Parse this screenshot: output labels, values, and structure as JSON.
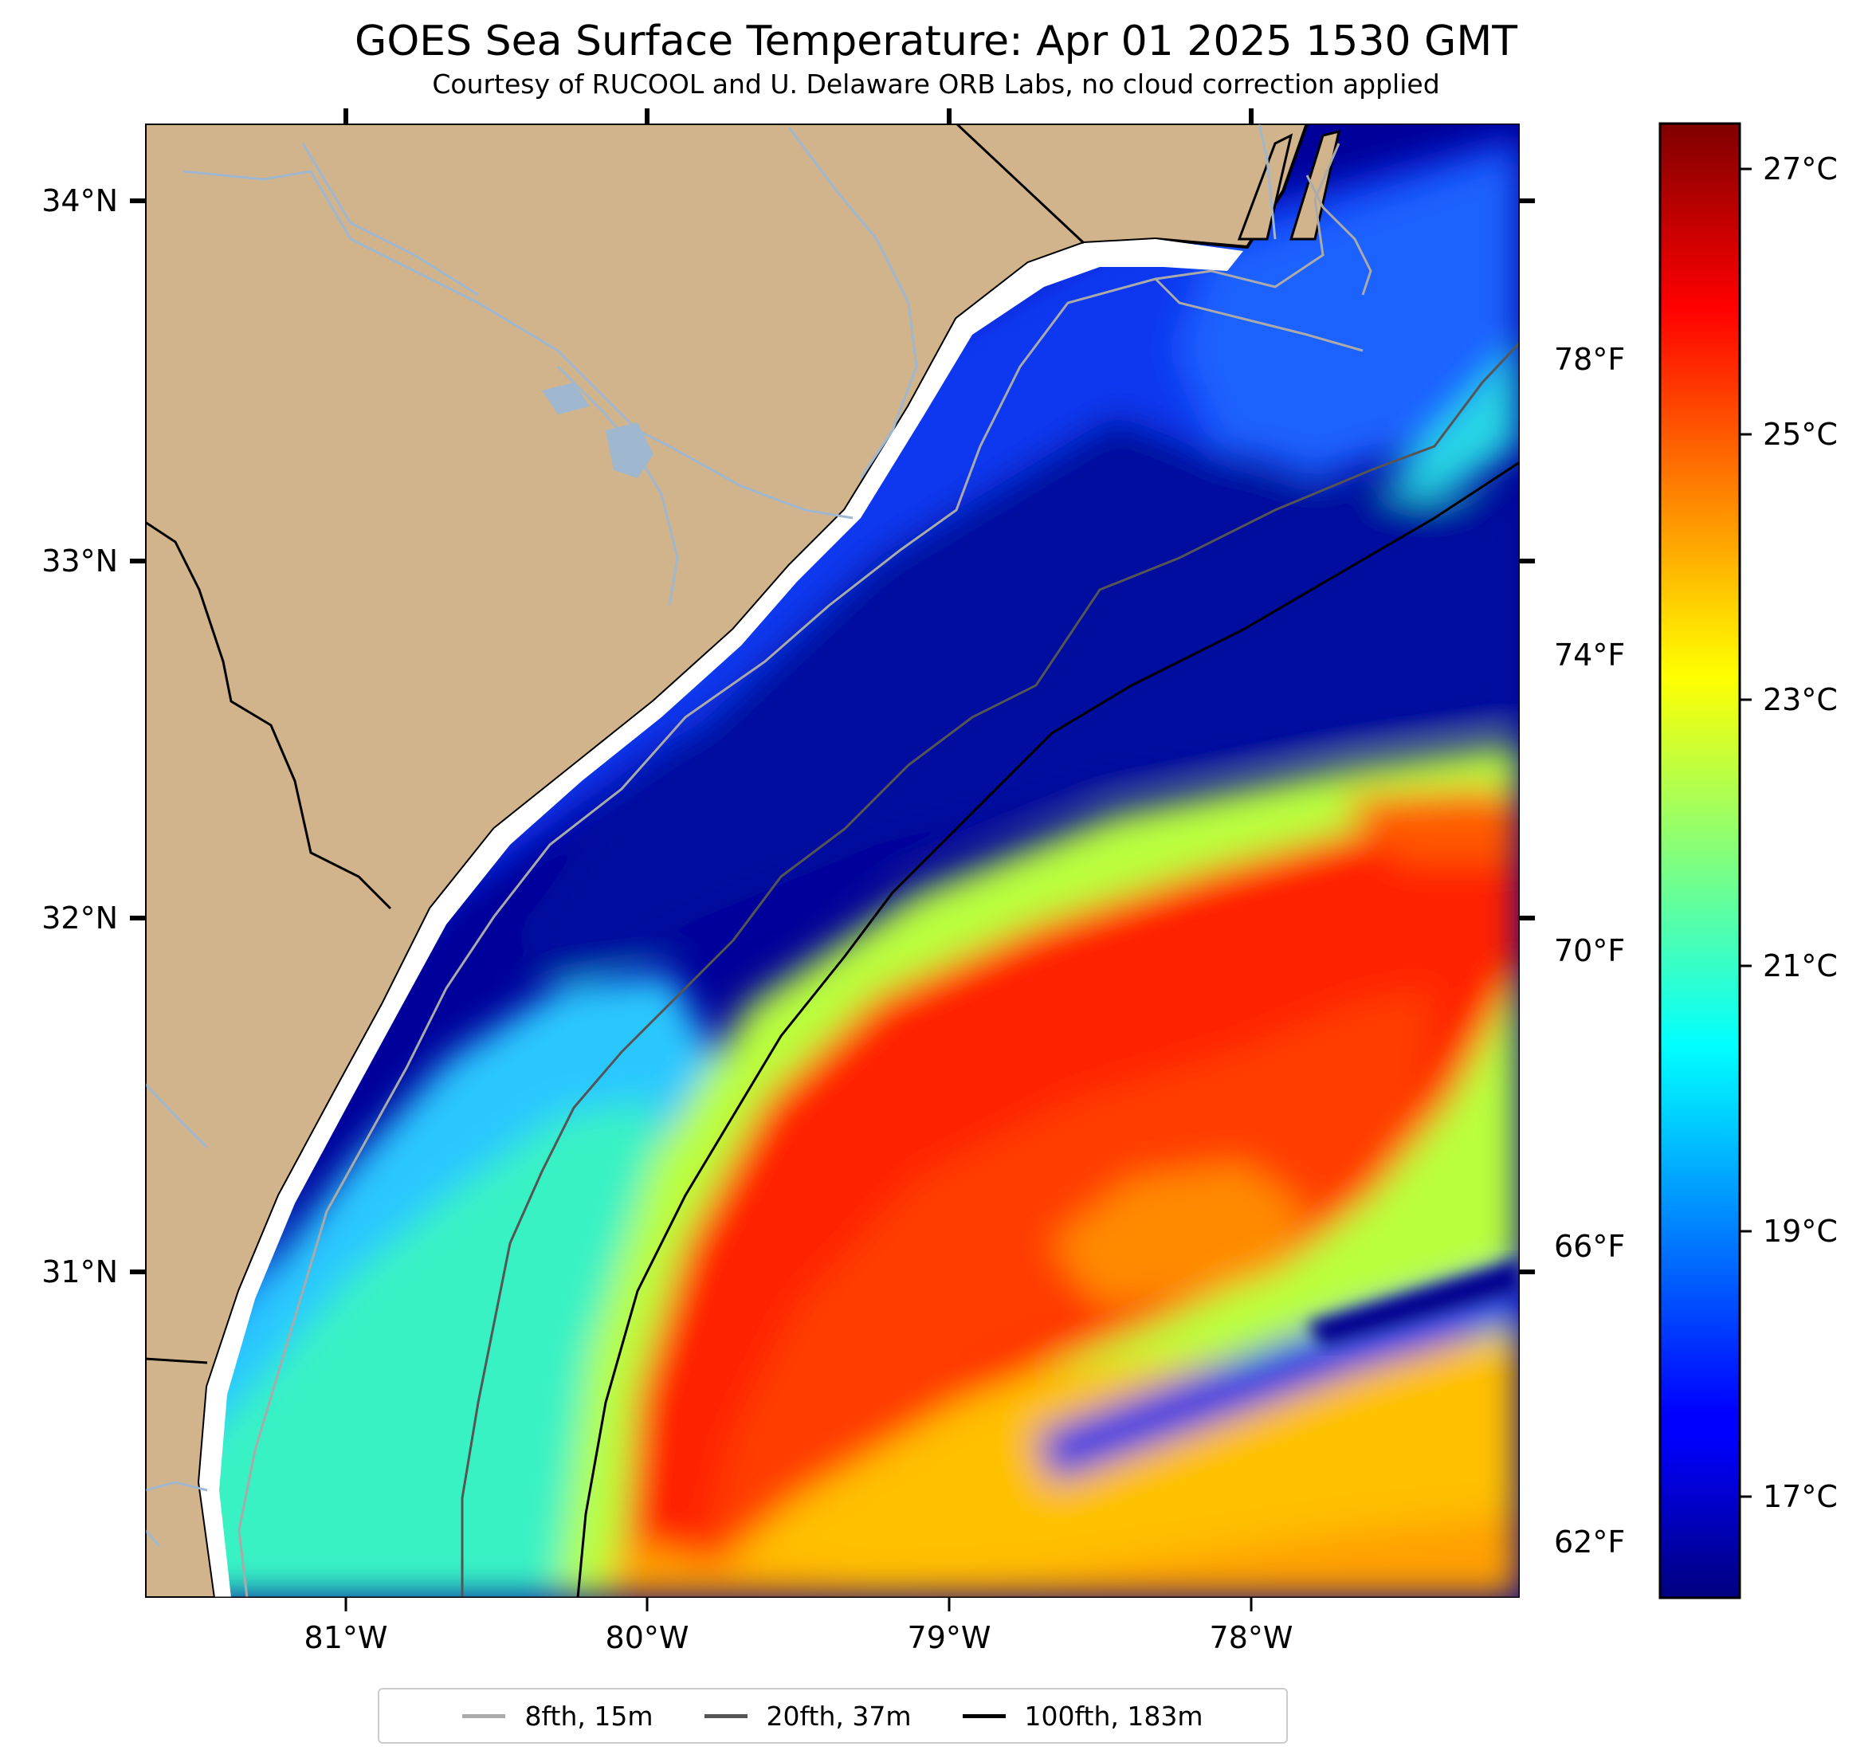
{
  "title": "GOES Sea Surface Temperature: Apr 01 2025 1530 GMT",
  "subtitle": "Courtesy of RUCOOL and U. Delaware ORB Labs, no cloud correction applied",
  "map": {
    "lon_ticks": [
      "81°W",
      "80°W",
      "79°W",
      "78°W"
    ],
    "lat_ticks": [
      "34°N",
      "33°N",
      "32°N",
      "31°N"
    ],
    "land_color": "#d2b48c",
    "coastline_color": "#000000",
    "river_color": "#9fb7cf"
  },
  "colorbar": {
    "celsius_ticks": [
      "27°C",
      "25°C",
      "23°C",
      "21°C",
      "19°C",
      "17°C"
    ],
    "fahrenheit_ticks": [
      "78°F",
      "74°F",
      "70°F",
      "66°F",
      "62°F"
    ],
    "colormap": "jet",
    "range_c": [
      16.3,
      27.4
    ]
  },
  "legend": [
    {
      "label": "8fth, 15m",
      "color": "#aaaaaa"
    },
    {
      "label": "20fth, 37m",
      "color": "#555555"
    },
    {
      "label": "100fth, 183m",
      "color": "#000000"
    }
  ]
}
